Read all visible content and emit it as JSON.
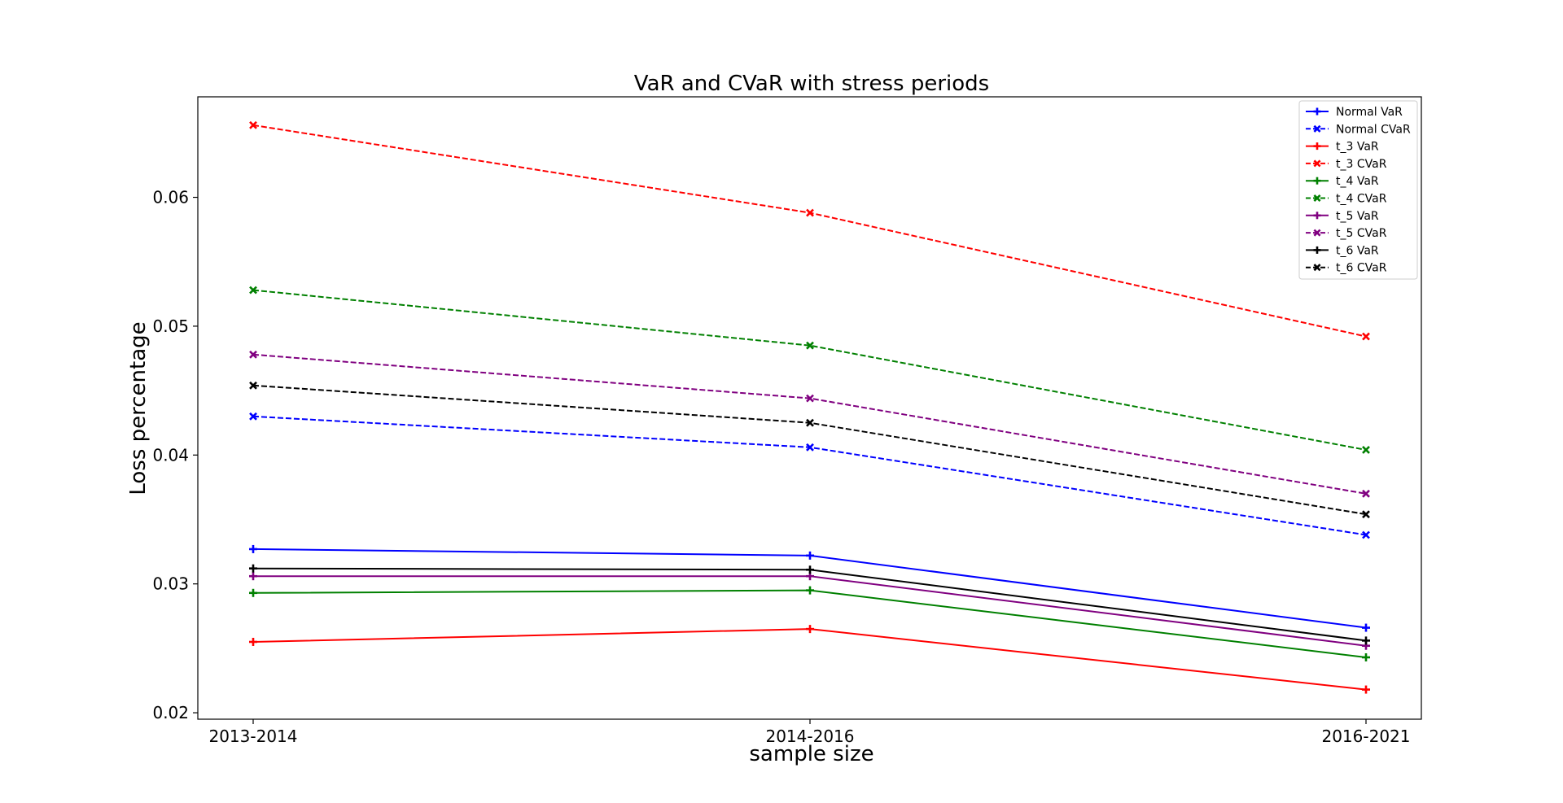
{
  "chart_data": {
    "type": "line",
    "title": "VaR and CVaR with stress periods",
    "xlabel": "sample size",
    "ylabel": "Loss percentage",
    "categories": [
      "2013-2014",
      "2014-2016",
      "2016-2021"
    ],
    "ylim": [
      0.0195,
      0.0678
    ],
    "yticks": [
      0.02,
      0.03,
      0.04,
      0.05,
      0.06
    ],
    "ytick_labels": [
      "0.02",
      "0.03",
      "0.04",
      "0.05",
      "0.06"
    ],
    "grid": false,
    "legend_position": "top-right",
    "series": [
      {
        "name": "Normal VaR",
        "values": [
          0.0327,
          0.0322,
          0.0266
        ],
        "color": "#0000ff",
        "dashed": false,
        "marker": "plus"
      },
      {
        "name": "Normal CVaR",
        "values": [
          0.043,
          0.0406,
          0.0338
        ],
        "color": "#0000ff",
        "dashed": true,
        "marker": "x"
      },
      {
        "name": "t_3 VaR",
        "values": [
          0.0255,
          0.0265,
          0.0218
        ],
        "color": "#ff0000",
        "dashed": false,
        "marker": "plus"
      },
      {
        "name": "t_3 CVaR",
        "values": [
          0.0656,
          0.0588,
          0.0492
        ],
        "color": "#ff0000",
        "dashed": true,
        "marker": "x"
      },
      {
        "name": "t_4 VaR",
        "values": [
          0.0293,
          0.0295,
          0.0243
        ],
        "color": "#008000",
        "dashed": false,
        "marker": "plus"
      },
      {
        "name": "t_4 CVaR",
        "values": [
          0.0528,
          0.0485,
          0.0404
        ],
        "color": "#008000",
        "dashed": true,
        "marker": "x"
      },
      {
        "name": "t_5 VaR",
        "values": [
          0.0306,
          0.0306,
          0.0252
        ],
        "color": "#800080",
        "dashed": false,
        "marker": "plus"
      },
      {
        "name": "t_5 CVaR",
        "values": [
          0.0478,
          0.0444,
          0.037
        ],
        "color": "#800080",
        "dashed": true,
        "marker": "x"
      },
      {
        "name": "t_6 VaR",
        "values": [
          0.0312,
          0.0311,
          0.0256
        ],
        "color": "#000000",
        "dashed": false,
        "marker": "plus"
      },
      {
        "name": "t_6 CVaR",
        "values": [
          0.0454,
          0.0425,
          0.0354
        ],
        "color": "#000000",
        "dashed": true,
        "marker": "x"
      }
    ]
  }
}
